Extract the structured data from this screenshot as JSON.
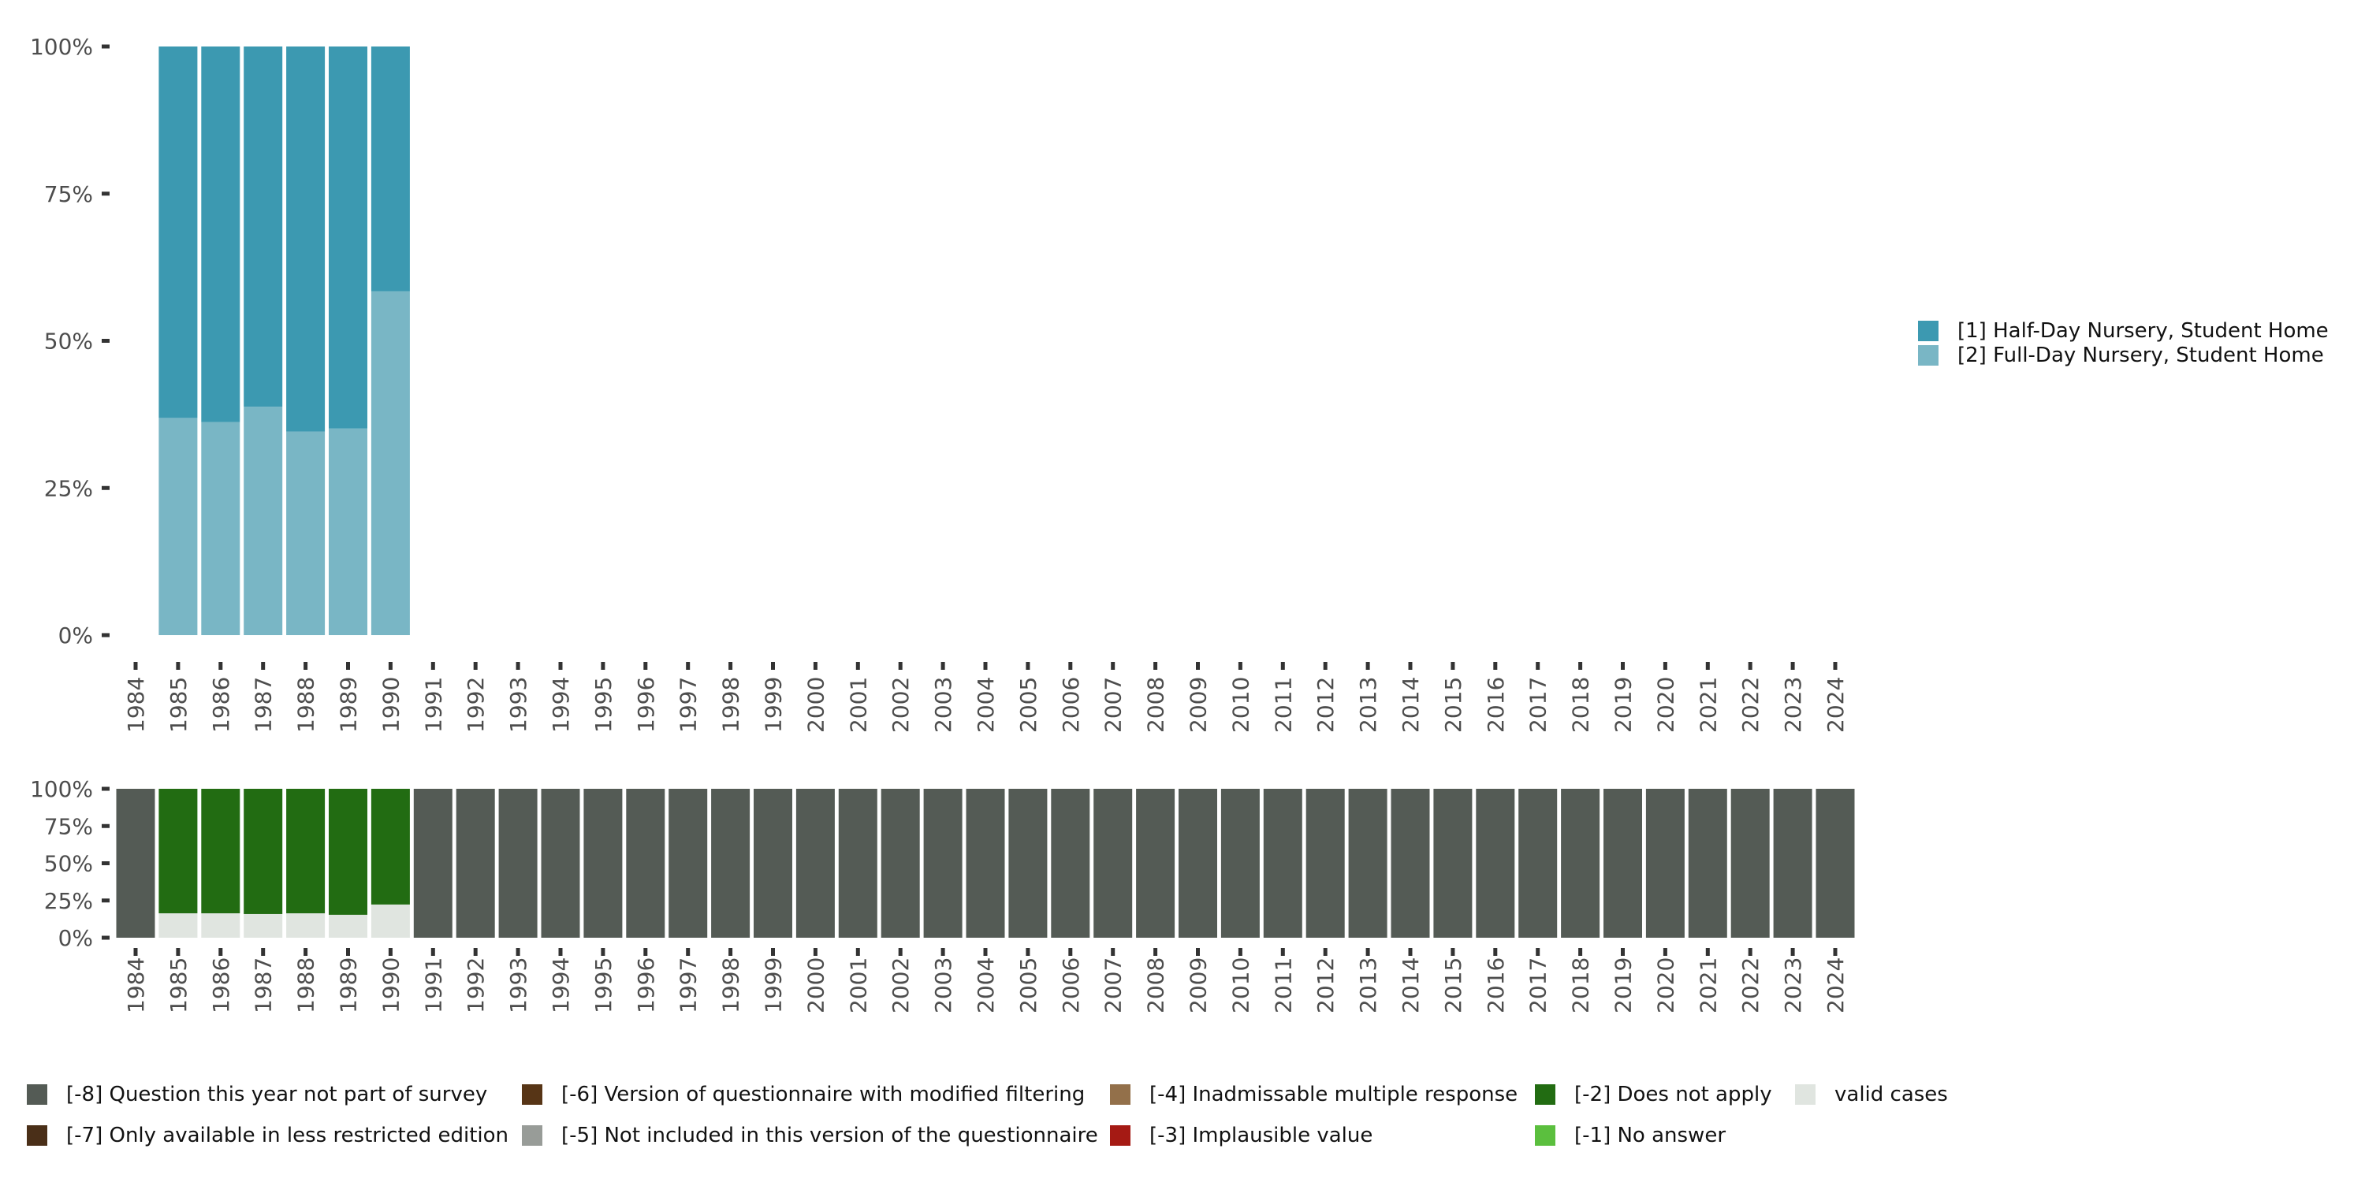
{
  "chart_data": [
    {
      "type": "bar",
      "stacked": true,
      "normalized": true,
      "categories": [
        "1984",
        "1985",
        "1986",
        "1987",
        "1988",
        "1989",
        "1990",
        "1991",
        "1992",
        "1993",
        "1994",
        "1995",
        "1996",
        "1997",
        "1998",
        "1999",
        "2000",
        "2001",
        "2002",
        "2003",
        "2004",
        "2005",
        "2006",
        "2007",
        "2008",
        "2009",
        "2010",
        "2011",
        "2012",
        "2013",
        "2014",
        "2015",
        "2016",
        "2017",
        "2018",
        "2019",
        "2020",
        "2021",
        "2022",
        "2023",
        "2024"
      ],
      "y_ticks": [
        "0%",
        "25%",
        "50%",
        "75%",
        "100%"
      ],
      "ylim": [
        0,
        1
      ],
      "series": [
        {
          "name": "[2] Full-Day Nursery, Student Home",
          "color": "#79B6C5",
          "values": [
            null,
            0.369,
            0.362,
            0.388,
            0.346,
            0.351,
            0.584,
            null,
            null,
            null,
            null,
            null,
            null,
            null,
            null,
            null,
            null,
            null,
            null,
            null,
            null,
            null,
            null,
            null,
            null,
            null,
            null,
            null,
            null,
            null,
            null,
            null,
            null,
            null,
            null,
            null,
            null,
            null,
            null,
            null,
            null
          ]
        },
        {
          "name": "[1] Half-Day Nursery, Student Home",
          "color": "#3C99B1",
          "values": [
            null,
            0.631,
            0.638,
            0.612,
            0.654,
            0.649,
            0.416,
            null,
            null,
            null,
            null,
            null,
            null,
            null,
            null,
            null,
            null,
            null,
            null,
            null,
            null,
            null,
            null,
            null,
            null,
            null,
            null,
            null,
            null,
            null,
            null,
            null,
            null,
            null,
            null,
            null,
            null,
            null,
            null,
            null,
            null
          ]
        }
      ],
      "legend": {
        "position": "right",
        "items": [
          "[1] Half-Day Nursery, Student Home",
          "[2] Full-Day Nursery, Student Home"
        ]
      }
    },
    {
      "type": "bar",
      "stacked": true,
      "normalized": true,
      "categories": [
        "1984",
        "1985",
        "1986",
        "1987",
        "1988",
        "1989",
        "1990",
        "1991",
        "1992",
        "1993",
        "1994",
        "1995",
        "1996",
        "1997",
        "1998",
        "1999",
        "2000",
        "2001",
        "2002",
        "2003",
        "2004",
        "2005",
        "2006",
        "2007",
        "2008",
        "2009",
        "2010",
        "2011",
        "2012",
        "2013",
        "2014",
        "2015",
        "2016",
        "2017",
        "2018",
        "2019",
        "2020",
        "2021",
        "2022",
        "2023",
        "2024"
      ],
      "y_ticks": [
        "0%",
        "25%",
        "50%",
        "75%",
        "100%"
      ],
      "ylim": [
        0,
        1
      ],
      "series": [
        {
          "name": "valid cases",
          "color": "#E0E5E0",
          "values": [
            0,
            0.164,
            0.164,
            0.159,
            0.164,
            0.154,
            0.223,
            0,
            0,
            0,
            0,
            0,
            0,
            0,
            0,
            0,
            0,
            0,
            0,
            0,
            0,
            0,
            0,
            0,
            0,
            0,
            0,
            0,
            0,
            0,
            0,
            0,
            0,
            0,
            0,
            0,
            0,
            0,
            0,
            0,
            0
          ]
        },
        {
          "name": "[-2] Does not apply",
          "color": "#226C12",
          "values": [
            0,
            0.836,
            0.836,
            0.841,
            0.836,
            0.846,
            0.777,
            0,
            0,
            0,
            0,
            0,
            0,
            0,
            0,
            0,
            0,
            0,
            0,
            0,
            0,
            0,
            0,
            0,
            0,
            0,
            0,
            0,
            0,
            0,
            0,
            0,
            0,
            0,
            0,
            0,
            0,
            0,
            0,
            0,
            0
          ]
        },
        {
          "name": "[-8] Question this year not part of survey",
          "color": "#545B55",
          "values": [
            1,
            0,
            0,
            0,
            0,
            0,
            0,
            1,
            1,
            1,
            1,
            1,
            1,
            1,
            1,
            1,
            1,
            1,
            1,
            1,
            1,
            1,
            1,
            1,
            1,
            1,
            1,
            1,
            1,
            1,
            1,
            1,
            1,
            1,
            1,
            1,
            1,
            1,
            1,
            1,
            1
          ]
        }
      ],
      "legend": {
        "position": "bottom",
        "items": [
          {
            "label": "[-8] Question this year not part of survey",
            "color": "#545B55"
          },
          {
            "label": "[-7] Only available in less restricted edition",
            "color": "#4A2F18"
          },
          {
            "label": "[-6] Version of questionnaire with modified filtering",
            "color": "#573516"
          },
          {
            "label": "[-5] Not included in this version of the questionnaire",
            "color": "#989C98"
          },
          {
            "label": "[-4] Inadmissable multiple response",
            "color": "#93704A"
          },
          {
            "label": "[-3] Implausible value",
            "color": "#A51A14"
          },
          {
            "label": "[-2] Does not apply",
            "color": "#226C12"
          },
          {
            "label": "[-1] No answer",
            "color": "#5BBF3E"
          },
          {
            "label": "valid cases",
            "color": "#E0E5E0"
          }
        ]
      }
    }
  ]
}
